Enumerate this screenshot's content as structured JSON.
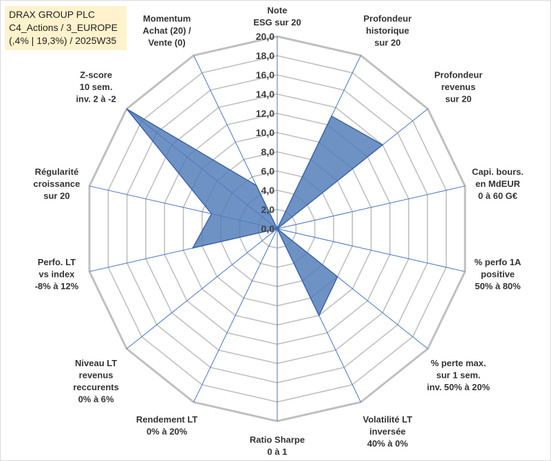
{
  "info": {
    "line1": "DRAX GROUP PLC",
    "line2": "C4_Actions / 3_EUROPE",
    "line3": "(,4% | 19,3%) / 2025W35"
  },
  "colors": {
    "fill": "#4f7ab8",
    "stroke": "#3a64a4",
    "spoke": "#4472c4",
    "grid": "#bfbfbf",
    "info_bg": "#fff2cc"
  },
  "chart_data": {
    "type": "radar",
    "rmin": 0,
    "rmax": 20,
    "ticks": [
      "0,0",
      "2,0",
      "4,0",
      "6,0",
      "8,0",
      "10,0",
      "12,0",
      "14,0",
      "16,0",
      "18,0",
      "20,0"
    ],
    "axes": [
      {
        "label": [
          "Note",
          "ESG sur 20"
        ],
        "value": 0.0
      },
      {
        "label": [
          "Profondeur",
          "historique",
          "sur 20"
        ],
        "value": 13.0
      },
      {
        "label": [
          "Profondeur",
          "revenus",
          "sur 20"
        ],
        "value": 14.0
      },
      {
        "label": [
          "Capi. bours.",
          "en MdEUR",
          "0 à 60 G€"
        ],
        "value": 0.0
      },
      {
        "label": [
          "% perfo 1A",
          "positive",
          "50% à 80%"
        ],
        "value": 0.0
      },
      {
        "label": [
          "% perte max.",
          "sur 1 sem.",
          "inv. 50% à 20%"
        ],
        "value": 8.0
      },
      {
        "label": [
          "Volatilité LT",
          "inversée",
          "40% à 0%"
        ],
        "value": 10.0
      },
      {
        "label": [
          "Ratio Sharpe",
          "0 à 1"
        ],
        "value": 0.0
      },
      {
        "label": [
          "Rendement LT",
          "0% à 20%"
        ],
        "value": 0.0
      },
      {
        "label": [
          "Niveau LT",
          "revenus",
          "reccurents",
          "0% à 6%"
        ],
        "value": 0.0
      },
      {
        "label": [
          "Perfo. LT",
          "vs index",
          "-8% à 12%"
        ],
        "value": 9.0
      },
      {
        "label": [
          "Régularité",
          "croissance",
          "sur 20"
        ],
        "value": 7.0
      },
      {
        "label": [
          "Z-score",
          "10 sem.",
          "inv. 2 à -2"
        ],
        "value": 20.0
      },
      {
        "label": [
          "Momentum",
          "Achat (20) /",
          "Vente (0)"
        ],
        "value": 5.0
      }
    ]
  }
}
